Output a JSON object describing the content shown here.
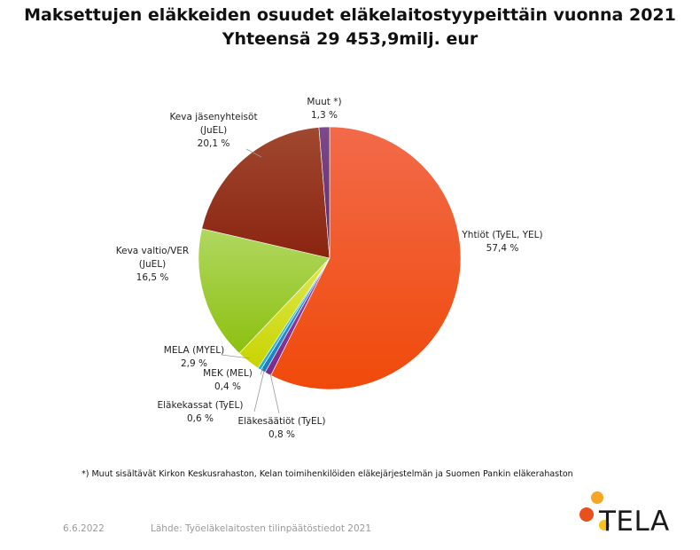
{
  "chart_data": {
    "type": "pie",
    "title": "Maksettujen eläkkeiden osuudet eläkelaitostyypeittäin vuonna 2021",
    "subtitle": "Yhteensä 29 453,9milj. eur",
    "slices": [
      {
        "label": [
          "Yhtiöt (TyEL, YEL)"
        ],
        "value": 57.4,
        "value_text": "57,4 %",
        "color": "#f04a0a",
        "color_light": "#f26a4a"
      },
      {
        "label": [
          "Eläkesäätiöt (TyEL)"
        ],
        "value": 0.8,
        "value_text": "0,8 %",
        "color": "#7a2a8a",
        "color_light": "#9a4aa8"
      },
      {
        "label": [
          "Eläkekassat (TyEL)"
        ],
        "value": 0.6,
        "value_text": "0,6 %",
        "color": "#1a7ac8",
        "color_light": "#4aa0e0"
      },
      {
        "label": [
          "MEK (MEL)"
        ],
        "value": 0.4,
        "value_text": "0,4 %",
        "color": "#20b0c0",
        "color_light": "#60d0e0"
      },
      {
        "label": [
          "MELA (MYEL)"
        ],
        "value": 2.9,
        "value_text": "2,9 %",
        "color": "#c8d400",
        "color_light": "#e0e850"
      },
      {
        "label": [
          "Keva valtio/VER",
          "(JuEL)"
        ],
        "value": 16.5,
        "value_text": "16,5 %",
        "color": "#8cc010",
        "color_light": "#b0d860"
      },
      {
        "label": [
          "Keva jäsenyhteisöt",
          "(JuEL)"
        ],
        "value": 20.1,
        "value_text": "20,1 %",
        "color": "#8a2410",
        "color_light": "#a04830"
      },
      {
        "label": [
          "Muut *)"
        ],
        "value": 1.3,
        "value_text": "1,3 %",
        "color": "#5a2a6a",
        "color_light": "#7a4a8a"
      }
    ]
  },
  "footnote": "*) Muut sisältävät Kirkon Keskusrahaston, Kelan toimihenkilöiden eläkejärjestelmän ja Suomen Pankin eläkerahaston",
  "date": "6.6.2022",
  "source": "Lähde: Työeläkelaitosten tilinpäätöstiedot 2021",
  "logo": {
    "text": "TELA",
    "icon": "tela-drops-logo-icon",
    "drop_colors": [
      "#f5a623",
      "#e8501e",
      "#f7c21a"
    ]
  }
}
